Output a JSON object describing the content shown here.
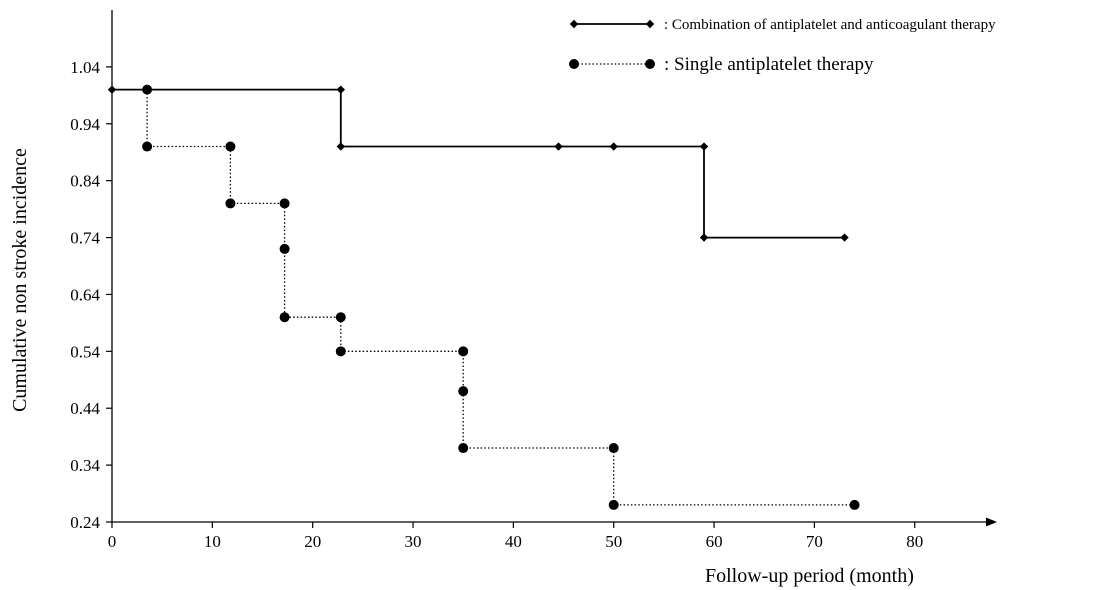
{
  "chart_data": {
    "type": "line",
    "subtype": "step",
    "title": "",
    "xlabel": "Follow-up period (month)",
    "ylabel": "Cumulative non stroke incidence",
    "xlim": [
      0,
      87
    ],
    "ylim": [
      0.24,
      1.14
    ],
    "x_ticks": [
      0,
      10,
      20,
      30,
      40,
      50,
      60,
      70,
      80
    ],
    "x_tick_labels": [
      "0",
      "10",
      "20",
      "30",
      "40",
      "50",
      "60",
      "70",
      "80"
    ],
    "y_ticks": [
      0.24,
      0.34,
      0.44,
      0.54,
      0.64,
      0.74,
      0.84,
      0.94,
      1.04
    ],
    "y_tick_labels": [
      "0.24",
      "0.34",
      "0.44",
      "0.54",
      "0.64",
      "0.74",
      "0.84",
      "0.94",
      "1.04"
    ],
    "grid": false,
    "legend_position": "top-right",
    "series": [
      {
        "name": ": Combination of antiplatelet and anticoagulant therapy",
        "line_style": "solid",
        "marker": "diamond",
        "color": "#000000",
        "points": [
          [
            0,
            1.0
          ],
          [
            22.8,
            1.0
          ],
          [
            22.8,
            0.9
          ],
          [
            44.5,
            0.9
          ],
          [
            50,
            0.9
          ],
          [
            59,
            0.9
          ],
          [
            59,
            0.74
          ],
          [
            73,
            0.74
          ]
        ]
      },
      {
        "name": ": Single antiplatelet therapy",
        "line_style": "dotted",
        "marker": "circle",
        "color": "#000000",
        "points": [
          [
            3.5,
            1.0
          ],
          [
            3.5,
            0.9
          ],
          [
            11.8,
            0.9
          ],
          [
            11.8,
            0.8
          ],
          [
            17.2,
            0.8
          ],
          [
            17.2,
            0.72
          ],
          [
            17.2,
            0.6
          ],
          [
            22.8,
            0.6
          ],
          [
            22.8,
            0.54
          ],
          [
            35,
            0.54
          ],
          [
            35,
            0.47
          ],
          [
            35,
            0.37
          ],
          [
            50,
            0.37
          ],
          [
            50,
            0.27
          ],
          [
            74,
            0.27
          ]
        ]
      }
    ]
  }
}
